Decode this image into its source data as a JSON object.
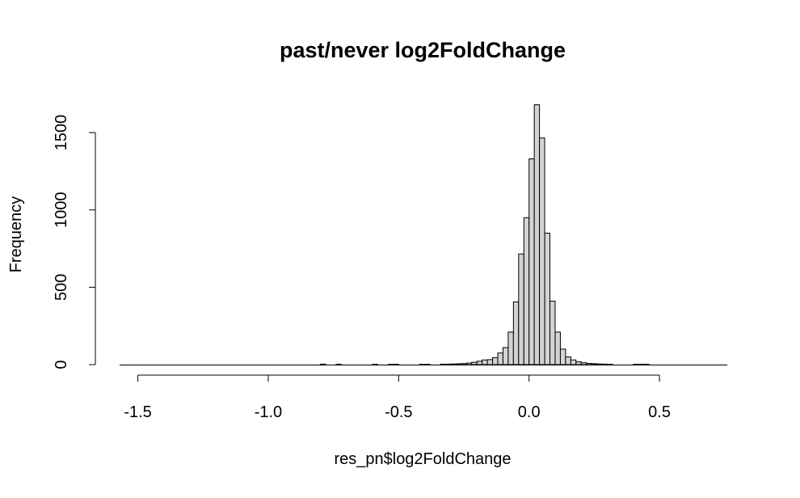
{
  "chart_data": {
    "type": "bar",
    "title": "past/never log2FoldChange",
    "xlabel": "res_pn$log2FoldChange",
    "ylabel": "Frequency",
    "xlim": [
      -1.57,
      0.76
    ],
    "ylim": [
      0,
      1700
    ],
    "x_ticks": [
      -1.5,
      -1.0,
      -0.5,
      0.0,
      0.5
    ],
    "x_tick_labels": [
      "-1.5",
      "-1.0",
      "-0.5",
      "0.0",
      "0.5"
    ],
    "y_ticks": [
      0,
      500,
      1000,
      1500
    ],
    "y_tick_labels": [
      "0",
      "500",
      "1000",
      "1500"
    ],
    "grid": false,
    "legend": "none",
    "bar_fill": "#d3d3d3",
    "bar_stroke": "#000000",
    "bins": [
      {
        "x0": -0.8,
        "x1": -0.78,
        "count": 3
      },
      {
        "x0": -0.74,
        "x1": -0.72,
        "count": 2
      },
      {
        "x0": -0.6,
        "x1": -0.58,
        "count": 2
      },
      {
        "x0": -0.54,
        "x1": -0.52,
        "count": 2
      },
      {
        "x0": -0.52,
        "x1": -0.5,
        "count": 2
      },
      {
        "x0": -0.42,
        "x1": -0.4,
        "count": 2
      },
      {
        "x0": -0.4,
        "x1": -0.38,
        "count": 2
      },
      {
        "x0": -0.34,
        "x1": -0.32,
        "count": 3
      },
      {
        "x0": -0.32,
        "x1": -0.3,
        "count": 3
      },
      {
        "x0": -0.3,
        "x1": -0.28,
        "count": 4
      },
      {
        "x0": -0.28,
        "x1": -0.26,
        "count": 5
      },
      {
        "x0": -0.26,
        "x1": -0.24,
        "count": 7
      },
      {
        "x0": -0.24,
        "x1": -0.22,
        "count": 10
      },
      {
        "x0": -0.22,
        "x1": -0.2,
        "count": 15
      },
      {
        "x0": -0.2,
        "x1": -0.18,
        "count": 22
      },
      {
        "x0": -0.18,
        "x1": -0.16,
        "count": 30
      },
      {
        "x0": -0.16,
        "x1": -0.14,
        "count": 32
      },
      {
        "x0": -0.14,
        "x1": -0.12,
        "count": 45
      },
      {
        "x0": -0.12,
        "x1": -0.1,
        "count": 75
      },
      {
        "x0": -0.1,
        "x1": -0.08,
        "count": 110
      },
      {
        "x0": -0.08,
        "x1": -0.06,
        "count": 210
      },
      {
        "x0": -0.06,
        "x1": -0.04,
        "count": 405
      },
      {
        "x0": -0.04,
        "x1": -0.02,
        "count": 715
      },
      {
        "x0": -0.02,
        "x1": 0.0,
        "count": 950
      },
      {
        "x0": 0.0,
        "x1": 0.02,
        "count": 1330
      },
      {
        "x0": 0.02,
        "x1": 0.04,
        "count": 1680
      },
      {
        "x0": 0.04,
        "x1": 0.06,
        "count": 1465
      },
      {
        "x0": 0.06,
        "x1": 0.08,
        "count": 850
      },
      {
        "x0": 0.08,
        "x1": 0.1,
        "count": 410
      },
      {
        "x0": 0.1,
        "x1": 0.12,
        "count": 210
      },
      {
        "x0": 0.12,
        "x1": 0.14,
        "count": 100
      },
      {
        "x0": 0.14,
        "x1": 0.16,
        "count": 50
      },
      {
        "x0": 0.16,
        "x1": 0.18,
        "count": 30
      },
      {
        "x0": 0.18,
        "x1": 0.2,
        "count": 18
      },
      {
        "x0": 0.2,
        "x1": 0.22,
        "count": 12
      },
      {
        "x0": 0.22,
        "x1": 0.24,
        "count": 8
      },
      {
        "x0": 0.24,
        "x1": 0.26,
        "count": 6
      },
      {
        "x0": 0.26,
        "x1": 0.28,
        "count": 4
      },
      {
        "x0": 0.28,
        "x1": 0.3,
        "count": 3
      },
      {
        "x0": 0.3,
        "x1": 0.32,
        "count": 2
      },
      {
        "x0": 0.4,
        "x1": 0.42,
        "count": 2
      },
      {
        "x0": 0.42,
        "x1": 0.44,
        "count": 2
      },
      {
        "x0": 0.44,
        "x1": 0.46,
        "count": 2
      }
    ]
  }
}
